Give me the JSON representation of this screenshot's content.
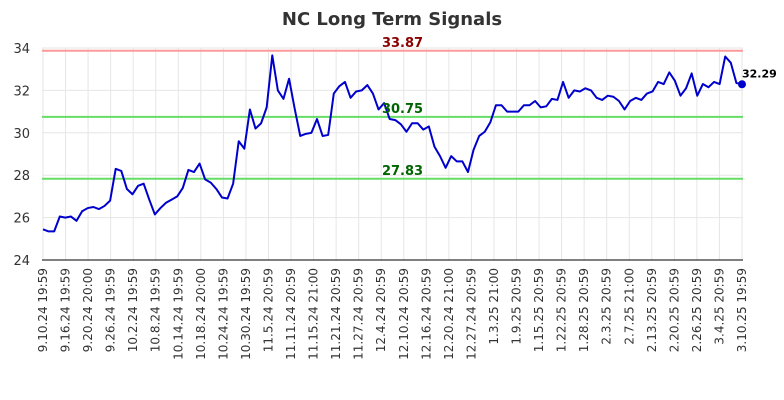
{
  "chart_data": {
    "type": "line",
    "title": "NC Long Term Signals",
    "xlabel": "",
    "ylabel": "",
    "ylim": [
      24,
      34
    ],
    "yticks": [
      24,
      26,
      28,
      30,
      32,
      34
    ],
    "grid": true,
    "xtick_labels": [
      "9.10.24 19:59",
      "9.16.24 19:59",
      "9.20.24 20:00",
      "9.26.24 19:59",
      "10.2.24 19:59",
      "10.8.24 19:59",
      "10.14.24 19:59",
      "10.18.24 20:00",
      "10.24.24 19:59",
      "10.30.24 19:59",
      "11.5.24 20:59",
      "11.11.24 20:59",
      "11.15.24 21:00",
      "11.21.24 20:59",
      "11.27.24 20:59",
      "12.4.24 20:59",
      "12.10.24 20:59",
      "12.16.24 20:59",
      "12.20.24 21:00",
      "12.27.24 20:59",
      "1.3.25 21:00",
      "1.9.25 20:59",
      "1.15.25 20:59",
      "1.22.25 20:59",
      "1.28.25 20:59",
      "2.3.25 20:59",
      "2.7.25 21:00",
      "2.13.25 20:59",
      "2.20.25 20:59",
      "2.26.25 20:59",
      "3.4.25 20:59",
      "3.10.25 19:59"
    ],
    "series": [
      {
        "values": [
          25.45,
          25.35,
          25.35,
          26.05,
          26.0,
          26.05,
          25.85,
          26.3,
          26.45,
          26.5,
          26.4,
          26.55,
          26.8,
          28.3,
          28.2,
          27.35,
          27.1,
          27.5,
          27.6,
          26.85,
          26.15,
          26.45,
          26.7,
          26.85,
          27.0,
          27.4,
          28.25,
          28.15,
          28.55,
          27.8,
          27.65,
          27.35,
          26.95,
          26.9,
          27.6,
          29.6,
          29.25,
          31.1,
          30.2,
          30.45,
          31.2,
          33.65,
          32.0,
          31.6,
          32.55,
          31.15,
          29.85,
          29.95,
          30.0,
          30.65,
          29.85,
          29.9,
          31.85,
          32.2,
          32.4,
          31.65,
          31.95,
          32.0,
          32.25,
          31.85,
          31.1,
          31.4,
          30.65,
          30.6,
          30.4,
          30.05,
          30.45,
          30.45,
          30.15,
          30.3,
          29.35,
          28.9,
          28.35,
          28.9,
          28.65,
          28.65,
          28.15,
          29.2,
          29.85,
          30.05,
          30.5,
          31.3,
          31.3,
          31.0,
          31.0,
          31.0,
          31.3,
          31.3,
          31.5,
          31.2,
          31.25,
          31.6,
          31.55,
          32.4,
          31.65,
          32.0,
          31.95,
          32.1,
          32.0,
          31.65,
          31.55,
          31.75,
          31.7,
          31.5,
          31.1,
          31.5,
          31.65,
          31.55,
          31.85,
          31.95,
          32.4,
          32.3,
          32.85,
          32.45,
          31.75,
          32.1,
          32.8,
          31.75,
          32.3,
          32.15,
          32.4,
          32.3,
          33.6,
          33.3,
          32.35,
          32.29
        ],
        "color": "#0000cc"
      }
    ],
    "levels": [
      {
        "value": 33.87,
        "label": "33.87",
        "color": "#ff9999",
        "label_color": "#8b0000"
      },
      {
        "value": 30.75,
        "label": "30.75",
        "color": "#66dd66",
        "label_color": "#006400"
      },
      {
        "value": 27.83,
        "label": "27.83",
        "color": "#66dd66",
        "label_color": "#006400"
      }
    ],
    "last_value": {
      "value": 32.29,
      "label": "32.29",
      "marker_color": "#0000cc"
    }
  }
}
